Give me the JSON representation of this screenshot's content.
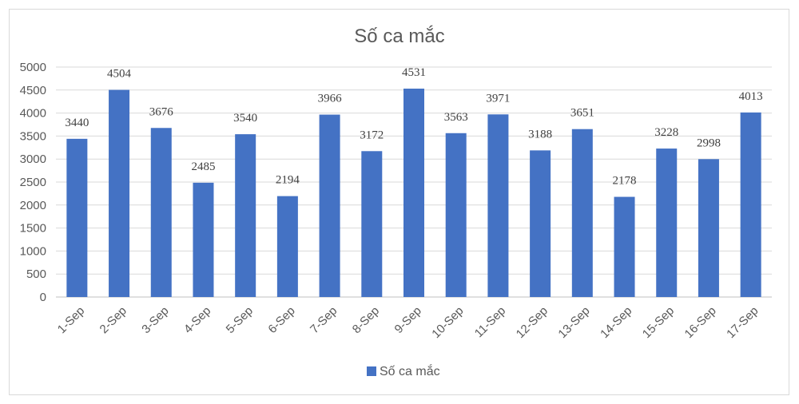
{
  "chart_data": {
    "type": "bar",
    "title": "Số ca mắc",
    "categories": [
      "1-Sep",
      "2-Sep",
      "3-Sep",
      "4-Sep",
      "5-Sep",
      "6-Sep",
      "7-Sep",
      "8-Sep",
      "9-Sep",
      "10-Sep",
      "11-Sep",
      "12-Sep",
      "13-Sep",
      "14-Sep",
      "15-Sep",
      "16-Sep",
      "17-Sep"
    ],
    "series": [
      {
        "name": "Số ca mắc",
        "values": [
          3440,
          4504,
          3676,
          2485,
          3540,
          2194,
          3966,
          3172,
          4531,
          3563,
          3971,
          3188,
          3651,
          2178,
          3228,
          2998,
          4013
        ]
      }
    ],
    "ylim": [
      0,
      5000
    ],
    "yticks": [
      0,
      500,
      1000,
      1500,
      2000,
      2500,
      3000,
      3500,
      4000,
      4500,
      5000
    ],
    "grid": true,
    "legend": "bottom",
    "colors": {
      "bar": "#4472C4",
      "grid": "#d9d9d9",
      "axis": "#bfbfbf"
    }
  }
}
